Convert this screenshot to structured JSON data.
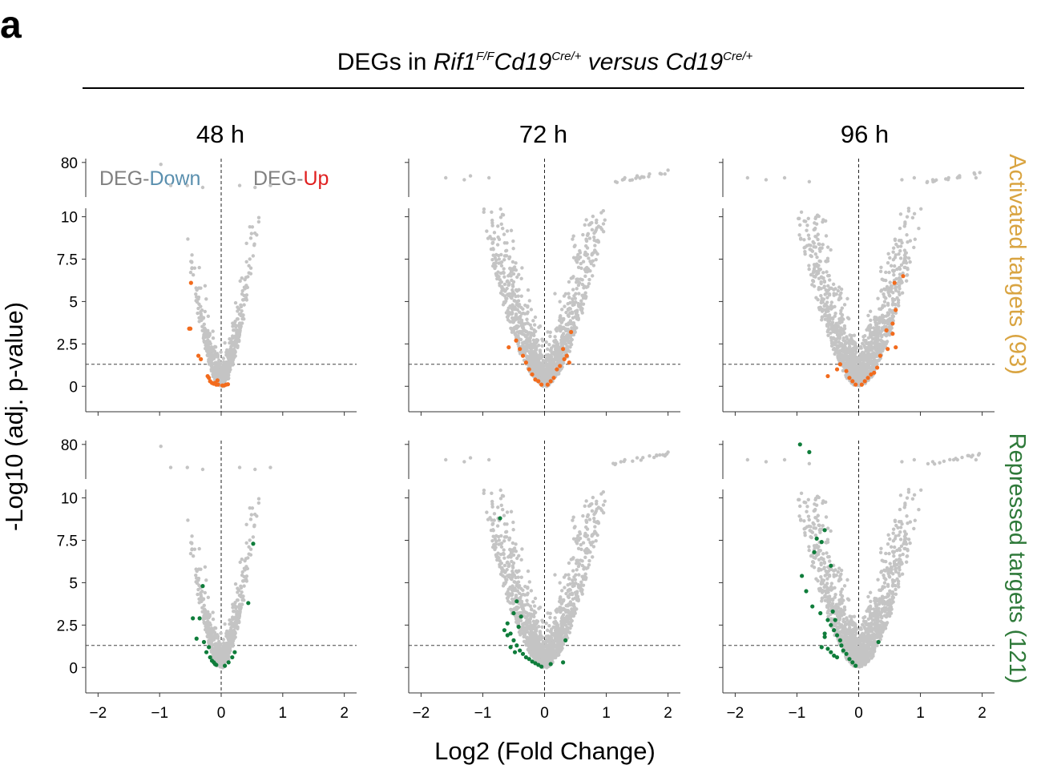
{
  "panel_letter": "a",
  "header": {
    "prefix": "DEGs in ",
    "gene": "Rif1",
    "gene_sup": "F/F",
    "driver1": "Cd19",
    "driver1_sup": "Cre/+",
    "versus": " versus ",
    "driver2": "Cd19",
    "driver2_sup": "Cre/+"
  },
  "legend": {
    "down_prefix": "DEG-",
    "down_word": "Down",
    "up_prefix": "DEG-",
    "up_word": "Up"
  },
  "y_axis_label": "-Log10 (adj. p-value)",
  "x_axis_label": "Log2 (Fold Change)",
  "colors": {
    "background_points": "#c4c4c4",
    "activated": "#f26b1d",
    "repressed": "#0f7d3b",
    "activated_label": "#d9a441",
    "repressed_label": "#2f7a3a",
    "down_word": "#5a8fae",
    "up_word": "#e02020",
    "legend_gray": "#808080"
  },
  "chart_data": {
    "type": "scatter",
    "description_kind": "volcano",
    "timepoints": [
      "48 h",
      "72 h",
      "96 h"
    ],
    "rows": [
      {
        "label": "Activated targets (93)",
        "highlight": "activated"
      },
      {
        "label": "Repressed targets (121)",
        "highlight": "repressed"
      }
    ],
    "x_ticks": [
      "−2",
      "−1",
      "0",
      "1",
      "2"
    ],
    "x_tick_values": [
      -2,
      -1,
      0,
      1,
      2
    ],
    "xlim": [
      -2.2,
      2.2
    ],
    "y_lower_ticks": [
      "0",
      "2.5",
      "5",
      "7.5",
      "10"
    ],
    "y_lower_tick_values": [
      0,
      2.5,
      5,
      7.5,
      10
    ],
    "y_lower_lim": [
      -1.5,
      10.5
    ],
    "y_upper_ticks": [
      "80"
    ],
    "y_upper_tick_values": [
      80
    ],
    "y_upper_lim": [
      62,
      82
    ],
    "significance_threshold": 1.3,
    "panels": {
      "48 h": {
        "bg_spread": 0.55,
        "bg_density": 1,
        "activated": [
          [
            -0.49,
            6.1
          ],
          [
            -0.5,
            3.4
          ],
          [
            -0.52,
            3.4
          ],
          [
            -0.37,
            1.8
          ],
          [
            -0.33,
            1.6
          ],
          [
            -0.2,
            0.5
          ],
          [
            -0.18,
            0.3
          ],
          [
            -0.15,
            0.2
          ],
          [
            -0.12,
            0.15
          ],
          [
            -0.1,
            0.2
          ],
          [
            -0.08,
            0.1
          ],
          [
            -0.05,
            0.1
          ],
          [
            0.05,
            0.05
          ],
          [
            0.08,
            0.1
          ],
          [
            0.11,
            0.12
          ],
          [
            -0.06,
            0.35
          ],
          [
            -0.22,
            0.6
          ],
          [
            0.02,
            0.05
          ]
        ],
        "repressed": [
          [
            -0.3,
            4.8
          ],
          [
            -0.46,
            2.9
          ],
          [
            -0.35,
            2.9
          ],
          [
            -0.4,
            1.7
          ],
          [
            0.52,
            7.3
          ],
          [
            0.44,
            3.8
          ],
          [
            -0.2,
            1.2
          ],
          [
            -0.24,
            0.9
          ],
          [
            -0.18,
            0.6
          ],
          [
            -0.15,
            0.4
          ],
          [
            -0.12,
            0.3
          ],
          [
            -0.1,
            0.2
          ],
          [
            -0.08,
            0.15
          ],
          [
            0.12,
            0.3
          ],
          [
            0.18,
            0.6
          ],
          [
            0.22,
            0.9
          ],
          [
            0.06,
            0.1
          ],
          [
            -0.28,
            1.5
          ]
        ],
        "top_bg": [
          [
            -0.98,
            79
          ],
          [
            -0.82,
            68
          ],
          [
            -0.55,
            68
          ],
          [
            -0.3,
            67
          ],
          [
            0.3,
            68
          ],
          [
            0.55,
            67
          ],
          [
            0.8,
            68
          ]
        ]
      },
      "72 h": {
        "bg_spread": 1.1,
        "bg_density": 3,
        "activated": [
          [
            0.43,
            3.2
          ],
          [
            -0.58,
            2.3
          ],
          [
            -0.46,
            2.7
          ],
          [
            -0.4,
            2.2
          ],
          [
            0.3,
            2.2
          ],
          [
            0.36,
            1.8
          ],
          [
            0.4,
            1.4
          ],
          [
            0.2,
            1.0
          ],
          [
            0.25,
            1.2
          ],
          [
            -0.3,
            1.4
          ],
          [
            -0.25,
            1.0
          ],
          [
            -0.2,
            0.7
          ],
          [
            -0.1,
            0.3
          ],
          [
            0.1,
            0.3
          ],
          [
            0.15,
            0.5
          ],
          [
            -0.15,
            0.4
          ],
          [
            0.05,
            0.1
          ],
          [
            -0.05,
            0.1
          ],
          [
            0.32,
            1.6
          ],
          [
            -0.35,
            1.8
          ]
        ],
        "repressed": [
          [
            -0.72,
            8.8
          ],
          [
            -0.5,
            3.2
          ],
          [
            -0.45,
            3.9
          ],
          [
            -0.6,
            2.6
          ],
          [
            -0.55,
            2.0
          ],
          [
            -0.5,
            1.6
          ],
          [
            -0.45,
            1.3
          ],
          [
            -0.4,
            1.0
          ],
          [
            -0.35,
            0.8
          ],
          [
            -0.3,
            0.6
          ],
          [
            -0.25,
            0.5
          ],
          [
            -0.2,
            0.35
          ],
          [
            -0.15,
            0.25
          ],
          [
            -0.1,
            0.15
          ],
          [
            -0.05,
            0.05
          ],
          [
            0.1,
            0.2
          ],
          [
            0.3,
            0.3
          ],
          [
            0.34,
            1.6
          ],
          [
            -0.6,
            1.9
          ],
          [
            -0.65,
            2.2
          ],
          [
            -0.38,
            3.0
          ],
          [
            -0.42,
            2.4
          ],
          [
            -0.55,
            1.2
          ],
          [
            -0.48,
            0.9
          ]
        ],
        "top_bg": [
          [
            -1.6,
            72
          ],
          [
            -1.2,
            73
          ],
          [
            -1.3,
            71
          ],
          [
            -0.9,
            72
          ],
          [
            1.15,
            70
          ],
          [
            1.3,
            72
          ],
          [
            1.5,
            73
          ],
          [
            1.7,
            74
          ],
          [
            1.95,
            74
          ],
          [
            2.0,
            76
          ]
        ]
      },
      "96 h": {
        "bg_spread": 1.05,
        "bg_density": 3,
        "activated": [
          [
            0.72,
            6.5
          ],
          [
            0.58,
            6.1
          ],
          [
            0.6,
            4.5
          ],
          [
            0.55,
            3.7
          ],
          [
            0.45,
            3.3
          ],
          [
            0.55,
            3.1
          ],
          [
            0.47,
            2.2
          ],
          [
            0.6,
            2.3
          ],
          [
            0.35,
            1.8
          ],
          [
            -0.3,
            1.3
          ],
          [
            -0.2,
            0.9
          ],
          [
            -0.5,
            0.6
          ],
          [
            -0.35,
            1.0
          ],
          [
            0.3,
            1.1
          ],
          [
            0.2,
            0.7
          ],
          [
            0.1,
            0.3
          ],
          [
            -0.1,
            0.3
          ],
          [
            -0.05,
            0.1
          ],
          [
            0.05,
            0.1
          ],
          [
            0.15,
            0.5
          ],
          [
            0.25,
            0.8
          ],
          [
            -0.15,
            0.5
          ]
        ],
        "repressed": [
          [
            -0.95,
            80
          ],
          [
            -0.8,
            76
          ],
          [
            -0.68,
            7.6
          ],
          [
            -0.55,
            8.1
          ],
          [
            -0.6,
            7.4
          ],
          [
            -0.72,
            6.8
          ],
          [
            -0.45,
            6.0
          ],
          [
            -0.92,
            5.4
          ],
          [
            -0.85,
            4.5
          ],
          [
            -0.75,
            3.6
          ],
          [
            -0.62,
            3.2
          ],
          [
            -0.5,
            2.8
          ],
          [
            -0.45,
            2.5
          ],
          [
            -0.4,
            2.2
          ],
          [
            -0.35,
            1.9
          ],
          [
            -0.3,
            1.6
          ],
          [
            -0.28,
            1.3
          ],
          [
            -0.25,
            1.0
          ],
          [
            -0.2,
            0.8
          ],
          [
            -0.15,
            0.5
          ],
          [
            -0.1,
            0.3
          ],
          [
            -0.05,
            0.1
          ],
          [
            0.32,
            1.5
          ],
          [
            -0.55,
            1.8
          ],
          [
            -0.6,
            1.2
          ],
          [
            -0.5,
            1.1
          ],
          [
            -0.45,
            0.9
          ],
          [
            -0.4,
            0.7
          ],
          [
            -0.35,
            0.6
          ],
          [
            -0.55,
            2.0
          ],
          [
            -0.42,
            3.3
          ],
          [
            -0.38,
            2.8
          ]
        ],
        "top_bg": [
          [
            -1.8,
            72
          ],
          [
            -1.5,
            71
          ],
          [
            -1.2,
            72
          ],
          [
            -0.8,
            70
          ],
          [
            0.7,
            71
          ],
          [
            0.9,
            72
          ],
          [
            1.2,
            71
          ],
          [
            1.6,
            72
          ],
          [
            1.9,
            72
          ]
        ]
      }
    }
  }
}
